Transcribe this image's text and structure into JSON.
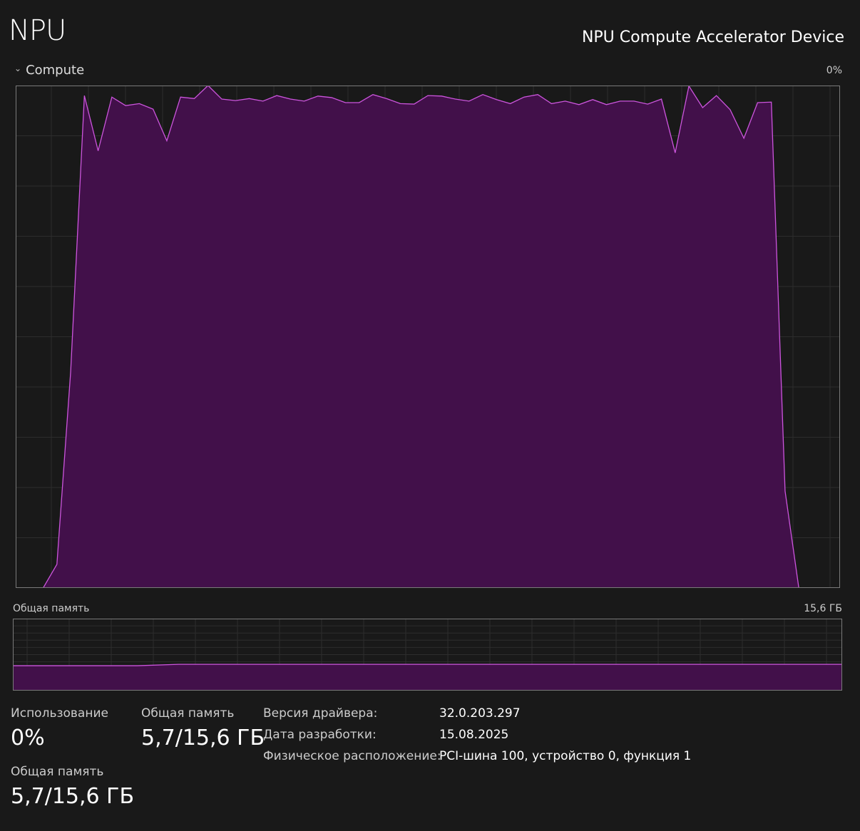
{
  "header": {
    "title": "NPU",
    "device_name": "NPU Compute Accelerator Device"
  },
  "compute_section": {
    "label": "Compute",
    "chevron_icon": "chevron-down-icon",
    "max_label": "0%"
  },
  "memory_section": {
    "label": "Общая память",
    "max_label": "15,6 ГБ"
  },
  "colors": {
    "background": "#191919",
    "fill": "#42104a",
    "line": "#cc55dd",
    "grid": "#2d2d2d",
    "border": "#7a7a7a"
  },
  "stats": {
    "usage": {
      "label": "Использование",
      "value": "0%"
    },
    "shared_memory_1": {
      "label": "Общая память",
      "value": "5,7/15,6 ГБ"
    },
    "shared_memory_2": {
      "label": "Общая память",
      "value": "5,7/15,6 ГБ"
    }
  },
  "info": [
    {
      "key": "Версия драйвера:",
      "value": "32.0.203.297"
    },
    {
      "key": "Дата разработки:",
      "value": "15.08.2025"
    },
    {
      "key": "Физическое расположение:",
      "value": "PCI-шина 100, устройство 0, функция 1"
    }
  ],
  "chart_data": [
    {
      "type": "area",
      "ylim": [
        0,
        100
      ],
      "grid": true,
      "values": [
        null,
        null,
        0,
        4.7,
        43,
        98,
        87,
        97.7,
        96,
        96.4,
        95.3,
        89,
        97.7,
        97.4,
        100,
        97.3,
        97,
        97.4,
        96.9,
        98,
        97.3,
        96.9,
        97.9,
        97.6,
        96.6,
        96.6,
        98.2,
        97.4,
        96.4,
        96.3,
        98,
        97.9,
        97.3,
        96.9,
        98.2,
        97.2,
        96.4,
        97.7,
        98.2,
        96.4,
        96.9,
        96.2,
        97.2,
        96.2,
        96.9,
        96.9,
        96.3,
        97.3,
        86.6,
        99.9,
        95.6,
        98,
        95.2,
        89.5,
        96.6,
        96.7,
        19.3,
        0,
        null,
        null,
        null
      ]
    },
    {
      "type": "area",
      "ylim": [
        0,
        15.6
      ],
      "grid": true,
      "values": [
        5.4,
        5.4,
        5.4,
        5.4,
        5.7,
        5.7,
        5.7,
        5.7,
        5.7,
        5.7,
        5.7,
        5.7,
        5.7,
        5.7,
        5.7,
        5.7,
        5.7,
        5.7,
        5.7,
        5.7,
        5.7
      ]
    }
  ]
}
